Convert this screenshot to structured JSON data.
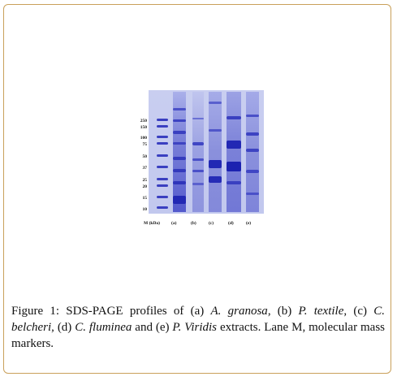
{
  "figure": {
    "ladder_labels": [
      "250",
      "150",
      "100",
      "75",
      "50",
      "37",
      "25",
      "20",
      "15",
      "10"
    ],
    "marker_label": "M (kDa)",
    "lane_labels": [
      "(a)",
      "(b)",
      "(c)",
      "(d)",
      "(e)"
    ]
  },
  "caption": {
    "prefix": "Figure 1:",
    "t1": " SDS-PAGE profiles of (a) ",
    "s1": "A. granosa",
    "t2": ", (b) ",
    "s2": "P. textile",
    "t3": ", (c) ",
    "s3": "C. belcheri",
    "t4": ", (d) ",
    "s4": "C. fluminea",
    "t5": " and (e) ",
    "s5": "P. Viridis",
    "t6": " extracts. Lane M, molecular mass markers."
  },
  "colors": {
    "gel": "#c4caef",
    "band": "#2a2fb8",
    "frame": "#c9a05a"
  }
}
